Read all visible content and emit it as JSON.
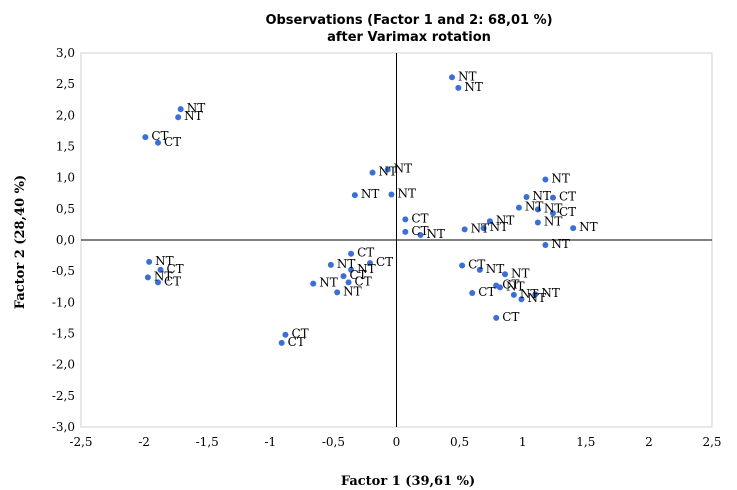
{
  "chart_data": {
    "type": "scatter",
    "title_line1": "Observations (Factor 1 and 2: 68,01 %)",
    "title_line2": "after Varimax rotation",
    "xlabel": "Factor 1 (39,61 %)",
    "ylabel": "Factor 2 (28,40 %)",
    "xlim": [
      -2.5,
      2.5
    ],
    "ylim": [
      -3.0,
      3.0
    ],
    "x_ticks": [
      "-2,5",
      "-2",
      "-1,5",
      "-1",
      "-0,5",
      "0",
      "0,5",
      "1",
      "1,5",
      "2",
      "2,5"
    ],
    "y_ticks": [
      "-3,0",
      "-2,5",
      "-2,0",
      "-1,5",
      "-1,0",
      "-0,5",
      "0,0",
      "0,5",
      "1,0",
      "1,5",
      "2,0",
      "2,5",
      "3,0"
    ],
    "grid": false,
    "marker_color": "#3b6fd8",
    "points": [
      {
        "x": -1.71,
        "y": 2.1,
        "label": "NT"
      },
      {
        "x": -1.73,
        "y": 1.97,
        "label": "NT"
      },
      {
        "x": -1.99,
        "y": 1.65,
        "label": "CT"
      },
      {
        "x": -1.89,
        "y": 1.56,
        "label": "CT"
      },
      {
        "x": 0.44,
        "y": 2.61,
        "label": "NT"
      },
      {
        "x": 0.49,
        "y": 2.44,
        "label": "NT"
      },
      {
        "x": -0.19,
        "y": 1.08,
        "label": "NT"
      },
      {
        "x": -0.07,
        "y": 1.13,
        "label": "NT"
      },
      {
        "x": -0.33,
        "y": 0.72,
        "label": "NT"
      },
      {
        "x": -0.04,
        "y": 0.73,
        "label": "NT"
      },
      {
        "x": 0.07,
        "y": 0.33,
        "label": "CT"
      },
      {
        "x": 0.07,
        "y": 0.13,
        "label": "CT"
      },
      {
        "x": 0.19,
        "y": 0.08,
        "label": "NT"
      },
      {
        "x": 0.54,
        "y": 0.17,
        "label": "NT"
      },
      {
        "x": 0.74,
        "y": 0.3,
        "label": "NT"
      },
      {
        "x": 0.69,
        "y": 0.19,
        "label": "NT"
      },
      {
        "x": 1.18,
        "y": 0.97,
        "label": "NT"
      },
      {
        "x": 1.03,
        "y": 0.69,
        "label": "NT"
      },
      {
        "x": 0.97,
        "y": 0.52,
        "label": "NT"
      },
      {
        "x": 1.12,
        "y": 0.49,
        "label": "NT"
      },
      {
        "x": 1.24,
        "y": 0.68,
        "label": "CT"
      },
      {
        "x": 1.24,
        "y": 0.43,
        "label": "CT"
      },
      {
        "x": 1.12,
        "y": 0.28,
        "label": "NT"
      },
      {
        "x": 1.4,
        "y": 0.19,
        "label": "NT"
      },
      {
        "x": 1.18,
        "y": -0.08,
        "label": "NT"
      },
      {
        "x": -1.96,
        "y": -0.35,
        "label": "NT"
      },
      {
        "x": -1.87,
        "y": -0.48,
        "label": "CT"
      },
      {
        "x": -1.97,
        "y": -0.6,
        "label": "NT"
      },
      {
        "x": -1.89,
        "y": -0.68,
        "label": "CT"
      },
      {
        "x": -0.36,
        "y": -0.22,
        "label": "CT"
      },
      {
        "x": -0.21,
        "y": -0.37,
        "label": "CT"
      },
      {
        "x": -0.52,
        "y": -0.4,
        "label": "NT"
      },
      {
        "x": -0.36,
        "y": -0.48,
        "label": "NT"
      },
      {
        "x": -0.42,
        "y": -0.58,
        "label": "CT"
      },
      {
        "x": -0.66,
        "y": -0.7,
        "label": "NT"
      },
      {
        "x": -0.38,
        "y": -0.68,
        "label": "CT"
      },
      {
        "x": -0.47,
        "y": -0.84,
        "label": "NT"
      },
      {
        "x": 0.52,
        "y": -0.41,
        "label": "CT"
      },
      {
        "x": 0.66,
        "y": -0.48,
        "label": "NT"
      },
      {
        "x": 0.86,
        "y": -0.55,
        "label": "NT"
      },
      {
        "x": 0.79,
        "y": -0.73,
        "label": "CT"
      },
      {
        "x": 0.82,
        "y": -0.76,
        "label": "NT"
      },
      {
        "x": 0.6,
        "y": -0.85,
        "label": "CT"
      },
      {
        "x": 0.93,
        "y": -0.88,
        "label": "NT"
      },
      {
        "x": 0.99,
        "y": -0.95,
        "label": "NT"
      },
      {
        "x": 1.1,
        "y": -0.87,
        "label": "NT"
      },
      {
        "x": 0.79,
        "y": -1.25,
        "label": "CT"
      },
      {
        "x": -0.88,
        "y": -1.52,
        "label": "CT"
      },
      {
        "x": -0.91,
        "y": -1.65,
        "label": "CT"
      }
    ]
  }
}
